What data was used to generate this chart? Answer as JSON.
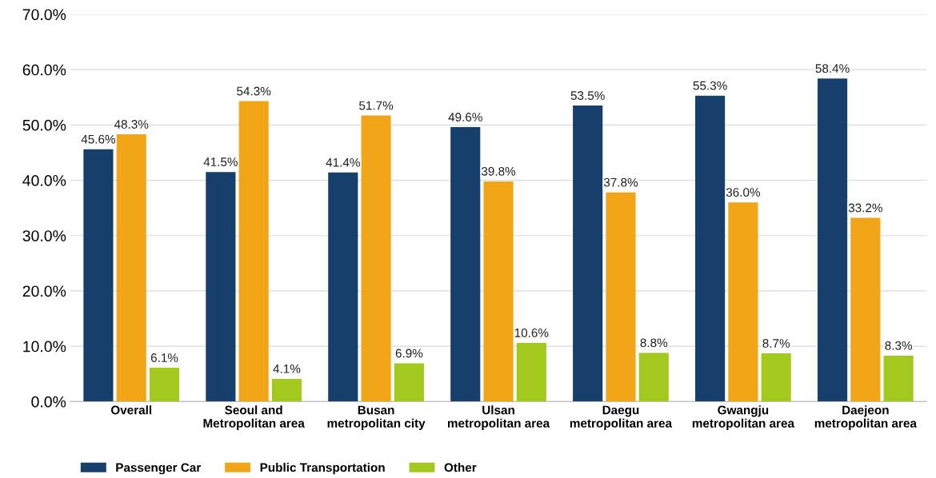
{
  "chart_data": {
    "type": "bar",
    "categories": [
      "Overall",
      "Seoul and\nMetropolitan area",
      "Busan\nmetropolitan city",
      "Ulsan\nmetropolitan area",
      "Daegu\nmetropolitan area",
      "Gwangju\nmetropolitan area",
      "Daejeon\nmetropolitan area"
    ],
    "series": [
      {
        "name": "Passenger Car",
        "color": "#173f6b",
        "values": [
          45.6,
          41.5,
          41.4,
          49.6,
          53.5,
          55.3,
          58.4
        ],
        "value_labels": [
          "45.6%",
          "41.5%",
          "41.4%",
          "49.6%",
          "53.5%",
          "55.3%",
          "58.4%"
        ]
      },
      {
        "name": "Public Transportation",
        "color": "#f2a516",
        "values": [
          48.3,
          54.3,
          51.7,
          39.8,
          37.8,
          36.0,
          33.2
        ],
        "value_labels": [
          "48.3%",
          "54.3%",
          "51.7%",
          "39.8%",
          "37.8%",
          "36.0%",
          "33.2%"
        ]
      },
      {
        "name": "Other",
        "color": "#a2c91e",
        "values": [
          6.1,
          4.1,
          6.9,
          10.6,
          8.8,
          8.7,
          8.3
        ],
        "value_labels": [
          "6.1%",
          "4.1%",
          "6.9%",
          "10.6%",
          "8.8%",
          "8.7%",
          "8.3%"
        ]
      }
    ],
    "ylim": [
      0,
      70
    ],
    "yticks": [
      {
        "value": 0,
        "label": "0.0%"
      },
      {
        "value": 10,
        "label": "10.0%"
      },
      {
        "value": 20,
        "label": "20.0%"
      },
      {
        "value": 30,
        "label": "30.0%"
      },
      {
        "value": 40,
        "label": "40.0%"
      },
      {
        "value": 50,
        "label": "50.0%"
      },
      {
        "value": 60,
        "label": "60.0%"
      },
      {
        "value": 70,
        "label": "70.0%"
      }
    ],
    "grid": "y",
    "legend": "bottom left"
  }
}
